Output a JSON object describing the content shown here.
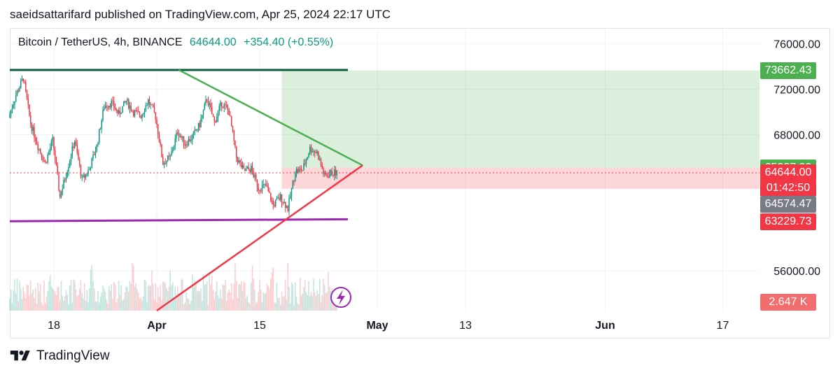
{
  "header": {
    "published": "saeidsattarifard published on TradingView.com, Apr 25, 2024 22:17 UTC"
  },
  "symbol": {
    "name": "Bitcoin / TetherUS, 4h, BINANCE",
    "price": "64644.00",
    "change": "+354.40 (+0.55%)"
  },
  "footer": {
    "brand": "TradingView"
  },
  "colors": {
    "up": "#089981",
    "down": "#f23645",
    "resistance_line": "#0b5d3b",
    "support_line": "#9c27b0",
    "upper_trend": "#4caf50",
    "lower_trend": "#f23645",
    "target_zone": "#4caf50",
    "stop_zone": "#f23645",
    "last_close_tag": "#787b86"
  },
  "chart_data": {
    "type": "candlestick",
    "symbol": "BTCUSDT",
    "exchange": "BINANCE",
    "timeframe": "4h",
    "ylim": [
      52500,
      77400
    ],
    "y_ticks": [
      76000,
      72000,
      68000,
      56000
    ],
    "y_tick_labels": [
      "76000.00",
      "72000.00",
      "68000.00",
      "56000.00"
    ],
    "x_ticks": [
      {
        "date": "2024-03-18",
        "label": "18"
      },
      {
        "date": "2024-04-01",
        "label": "Apr"
      },
      {
        "date": "2024-04-15",
        "label": "15"
      },
      {
        "date": "2024-05-01",
        "label": "May"
      },
      {
        "date": "2024-05-13",
        "label": "13"
      },
      {
        "date": "2024-06-01",
        "label": "Jun"
      },
      {
        "date": "2024-06-17",
        "label": "17"
      }
    ],
    "x_range": [
      "2024-03-12",
      "2024-06-22"
    ],
    "price_path": {
      "dates": [
        "2024-03-12",
        "2024-03-13",
        "2024-03-14",
        "2024-03-15",
        "2024-03-16",
        "2024-03-17",
        "2024-03-18",
        "2024-03-19",
        "2024-03-20",
        "2024-03-21",
        "2024-03-22",
        "2024-03-23",
        "2024-03-24",
        "2024-03-25",
        "2024-03-26",
        "2024-03-27",
        "2024-03-28",
        "2024-03-29",
        "2024-03-30",
        "2024-03-31",
        "2024-04-01",
        "2024-04-02",
        "2024-04-03",
        "2024-04-04",
        "2024-04-05",
        "2024-04-06",
        "2024-04-07",
        "2024-04-08",
        "2024-04-09",
        "2024-04-10",
        "2024-04-11",
        "2024-04-12",
        "2024-04-13",
        "2024-04-14",
        "2024-04-15",
        "2024-04-16",
        "2024-04-17",
        "2024-04-18",
        "2024-04-19",
        "2024-04-20",
        "2024-04-21",
        "2024-04-22",
        "2024-04-23",
        "2024-04-24",
        "2024-04-25"
      ],
      "prices": [
        69500,
        71500,
        73000,
        69000,
        67000,
        65500,
        67500,
        62500,
        65000,
        67500,
        64000,
        65000,
        67000,
        70500,
        70800,
        69800,
        71000,
        70000,
        69700,
        71000,
        69600,
        65500,
        66000,
        68300,
        67200,
        67800,
        68900,
        71200,
        69100,
        70800,
        70000,
        66000,
        64800,
        65000,
        63300,
        63500,
        61800,
        62500,
        61500,
        64800,
        64900,
        66800,
        66400,
        64300,
        64644
      ]
    },
    "horizontal_levels": [
      {
        "name": "resistance",
        "price": 73700,
        "from": "2024-03-12",
        "to": "2024-04-27"
      },
      {
        "name": "support",
        "price": 60500,
        "from": "2024-03-12",
        "to": "2024-04-27"
      }
    ],
    "trend_lines": [
      {
        "name": "descending",
        "from": {
          "date": "2024-04-04",
          "price": 73700
        },
        "to": {
          "date": "2024-04-29",
          "price": 65300
        }
      },
      {
        "name": "ascending",
        "from": {
          "date": "2024-04-01",
          "price": 52500
        },
        "to": {
          "date": "2024-04-29",
          "price": 65300
        }
      }
    ],
    "position": {
      "start": "2024-04-18",
      "end": "2024-06-22",
      "target": 73662.43,
      "entry": 65087.99,
      "stop": 63229.73
    },
    "price_labels": [
      {
        "value": "73662.43",
        "price": 73662.43,
        "color": "#4caf50"
      },
      {
        "value": "65087.99",
        "price": 65087.99,
        "color": "#4caf50"
      },
      {
        "value": "64644.00",
        "price": 64644.0,
        "color": "#f23645"
      },
      {
        "value": "64574.47",
        "price": 64574.47,
        "color": "#787b86"
      },
      {
        "value": "63229.73",
        "price": 63229.73,
        "color": "#f23645"
      }
    ],
    "countdown": "01:42:50",
    "volume_label": "2.647 K",
    "last_price": 64644.0
  }
}
